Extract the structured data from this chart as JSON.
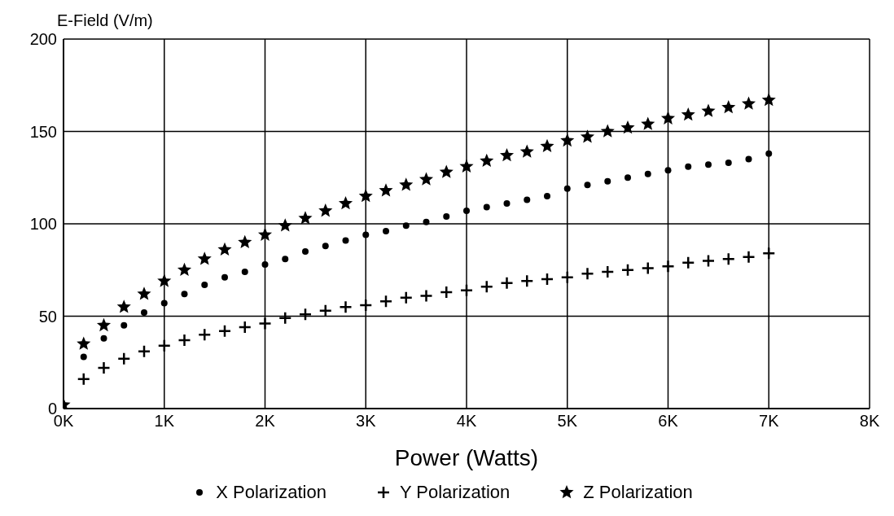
{
  "chart_data": {
    "type": "scatter",
    "xlabel": "Power (Watts)",
    "ylabel": "E-Field (V/m)",
    "x": [
      0,
      200,
      400,
      600,
      800,
      1000,
      1200,
      1400,
      1600,
      1800,
      2000,
      2200,
      2400,
      2600,
      2800,
      3000,
      3200,
      3400,
      3600,
      3800,
      4000,
      4200,
      4400,
      4600,
      4800,
      5000,
      5200,
      5400,
      5600,
      5800,
      6000,
      6200,
      6400,
      6600,
      6800,
      7000
    ],
    "series": [
      {
        "name": "X Polarization",
        "color": "#000000",
        "marker": "circle",
        "values": [
          null,
          28,
          38,
          45,
          52,
          57,
          62,
          67,
          71,
          74,
          78,
          81,
          85,
          88,
          91,
          94,
          96,
          99,
          101,
          104,
          107,
          109,
          111,
          113,
          115,
          119,
          121,
          123,
          125,
          127,
          129,
          131,
          132,
          133,
          135,
          138
        ]
      },
      {
        "name": "Y Polarization",
        "color": "#000000",
        "marker": "cross",
        "values": [
          null,
          16,
          22,
          27,
          31,
          34,
          37,
          40,
          42,
          44,
          46,
          49,
          51,
          53,
          55,
          56,
          58,
          60,
          61,
          63,
          64,
          66,
          68,
          69,
          70,
          71,
          73,
          74,
          75,
          76,
          77,
          79,
          80,
          81,
          82,
          84
        ]
      },
      {
        "name": "Z Polarization",
        "color": "#000000",
        "marker": "star",
        "values": [
          2,
          35,
          45,
          55,
          62,
          69,
          75,
          81,
          86,
          90,
          94,
          99,
          103,
          107,
          111,
          115,
          118,
          121,
          124,
          128,
          131,
          134,
          137,
          139,
          142,
          145,
          147,
          150,
          152,
          154,
          157,
          159,
          161,
          163,
          165,
          167
        ]
      }
    ],
    "xlim": [
      0,
      8000
    ],
    "xticks": [
      {
        "value": 0,
        "label": "0K"
      },
      {
        "value": 1000,
        "label": "1K"
      },
      {
        "value": 2000,
        "label": "2K"
      },
      {
        "value": 3000,
        "label": "3K"
      },
      {
        "value": 4000,
        "label": "4K"
      },
      {
        "value": 5000,
        "label": "5K"
      },
      {
        "value": 6000,
        "label": "6K"
      },
      {
        "value": 7000,
        "label": "7K"
      },
      {
        "value": 8000,
        "label": "8K"
      }
    ],
    "ylim": [
      0,
      200
    ],
    "yticks": [
      0,
      50,
      100,
      150,
      200
    ],
    "grid": true,
    "legend": "bottom"
  }
}
